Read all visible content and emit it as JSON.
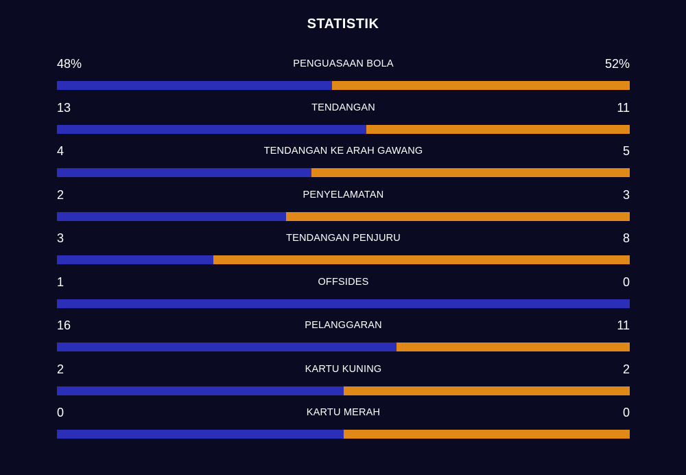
{
  "header": {
    "title": "STATISTIK"
  },
  "colors": {
    "home": "#2b2fb8",
    "away": "#e08918",
    "background": "#0a0a23"
  },
  "stats": [
    {
      "label": "PENGUASAAN BOLA",
      "home": "48%",
      "away": "52%",
      "home_share": 0.48
    },
    {
      "label": "TENDANGAN",
      "home": "13",
      "away": "11",
      "home_share": 0.54
    },
    {
      "label": "TENDANGAN KE ARAH GAWANG",
      "home": "4",
      "away": "5",
      "home_share": 0.444
    },
    {
      "label": "PENYELAMATAN",
      "home": "2",
      "away": "3",
      "home_share": 0.4
    },
    {
      "label": "TENDANGAN PENJURU",
      "home": "3",
      "away": "8",
      "home_share": 0.273
    },
    {
      "label": "OFFSIDES",
      "home": "1",
      "away": "0",
      "home_share": 1.0
    },
    {
      "label": "PELANGGARAN",
      "home": "16",
      "away": "11",
      "home_share": 0.593
    },
    {
      "label": "KARTU KUNING",
      "home": "2",
      "away": "2",
      "home_share": 0.5
    },
    {
      "label": "KARTU MERAH",
      "home": "0",
      "away": "0",
      "home_share": 0.5
    }
  ]
}
